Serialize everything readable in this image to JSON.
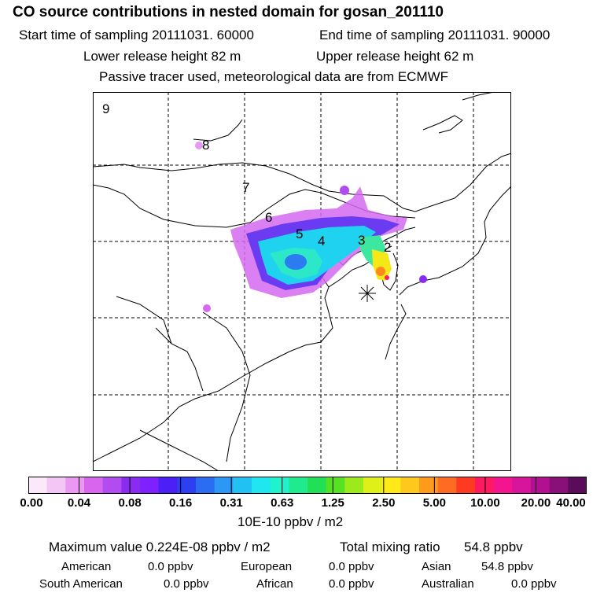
{
  "header": {
    "title": "CO  source contributions in nested domain for gosan_201110",
    "start_time": "Start time of sampling 20111031. 60000",
    "end_time": "End time of sampling 20111031. 90000",
    "lower_height": "Lower release height   82 m",
    "upper_height": "Upper release height   62 m",
    "tracer_note": "Passive tracer used, meteorological data are from ECMWF"
  },
  "map": {
    "region_labels": [
      "9",
      "8",
      "7",
      "6",
      "5",
      "4",
      "3",
      "2"
    ],
    "receptor_marker": "asterisk-icon"
  },
  "colorbar": {
    "ticks": [
      "0.00",
      "0.04",
      "0.08",
      "0.16",
      "0.31",
      "0.63",
      "1.25",
      "2.50",
      "5.00",
      "10.00",
      "20.00",
      "40.00"
    ],
    "unit": "10E-10 ppbv / m2",
    "colors": [
      "#fbe8fb",
      "#f4c6f6",
      "#ea98f2",
      "#d964ee",
      "#b34cf0",
      "#8a2bf0",
      "#7f21ff",
      "#4b1ff5",
      "#2d3ff0",
      "#2a6df2",
      "#2c97f5",
      "#22c1f4",
      "#1fe6f0",
      "#1ff2cc",
      "#1fea8e",
      "#22e055",
      "#56e222",
      "#9cea1c",
      "#dff018",
      "#ffea18",
      "#ffc81c",
      "#ff9b1c",
      "#ff6b22",
      "#ff3a22",
      "#ff1a60",
      "#f4148f",
      "#d6149c",
      "#b11090",
      "#881078",
      "#5a0c5a"
    ]
  },
  "summary": {
    "max_value": "Maximum value  0.224E-08 ppbv / m2",
    "total_label": "Total mixing ratio",
    "total_value": "54.8 ppbv",
    "regions": [
      {
        "name": "American",
        "value": "0.0 ppbv"
      },
      {
        "name": "European",
        "value": "0.0 ppbv"
      },
      {
        "name": "Asian",
        "value": "54.8 ppbv"
      },
      {
        "name": "South American",
        "value": "0.0 ppbv"
      },
      {
        "name": "African",
        "value": "0.0 ppbv"
      },
      {
        "name": "Australian",
        "value": "0.0 ppbv"
      }
    ]
  }
}
